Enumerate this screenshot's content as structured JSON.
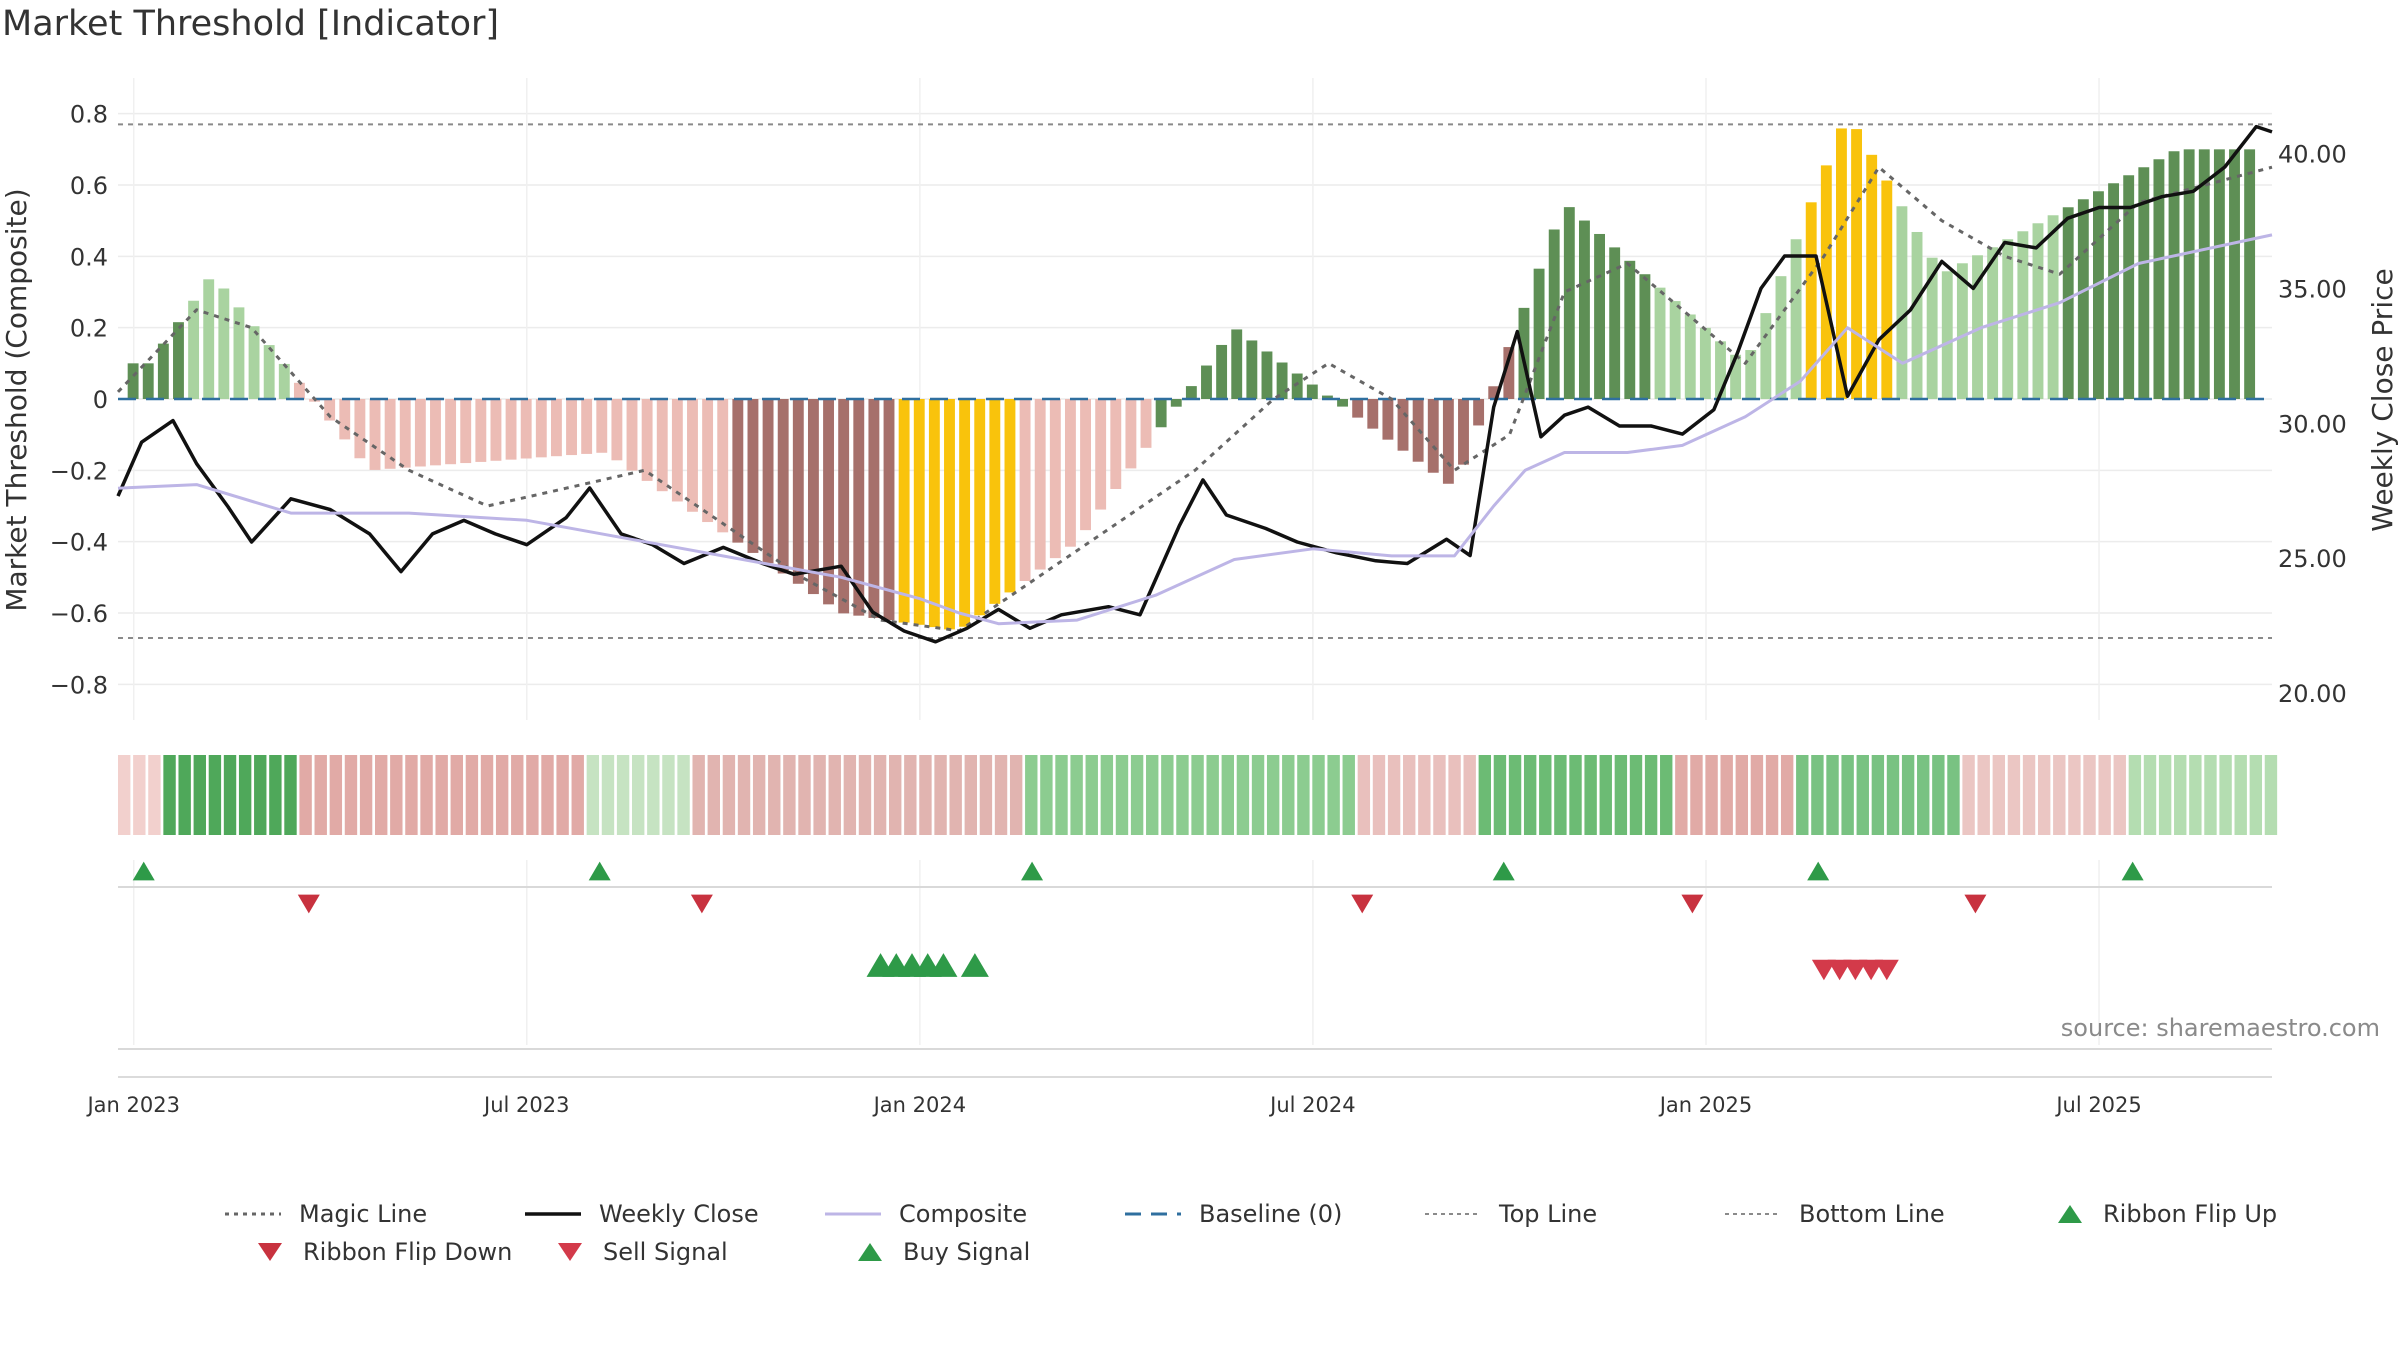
{
  "title": "Market Threshold [Indicator]",
  "source": "source: sharemaestro.com",
  "colors": {
    "strong_up": "#5e8f55",
    "weak_up": "#a9d3a0",
    "strong_down": "#a6706b",
    "weak_down": "#ecbcb5",
    "extreme": "#f9c30c",
    "weekly_close": "#111111",
    "composite": "#bdb5e6",
    "magic_line": "#666666",
    "baseline": "#2f6f9f",
    "threshold_line": "#8a8a8a",
    "buy": "#2e9a48",
    "sell": "#d33a4a"
  },
  "legend": [
    {
      "label": "Magic Line",
      "icon": "dotted-line"
    },
    {
      "label": "Weekly Close",
      "icon": "solid-line"
    },
    {
      "label": "Composite",
      "icon": "solid-line"
    },
    {
      "label": "Baseline (0)",
      "icon": "dashed-line"
    },
    {
      "label": "Top Line",
      "icon": "dotted-line"
    },
    {
      "label": "Bottom Line",
      "icon": "dotted-line"
    },
    {
      "label": "Ribbon Flip Up",
      "icon": "triangle-up"
    },
    {
      "label": "Ribbon Flip Down",
      "icon": "triangle-down"
    },
    {
      "label": "Sell Signal",
      "icon": "triangle-down"
    },
    {
      "label": "Buy Signal",
      "icon": "triangle-up"
    }
  ],
  "chart_data": {
    "type": "bar",
    "ylabel": "Market Threshold (Composite)",
    "y2label": "Weekly Close Price",
    "ylim": [
      -0.9,
      0.9
    ],
    "y2lim": [
      19.0,
      42.8
    ],
    "yticks": [
      "0.8",
      "0.6",
      "0.4",
      "0.2",
      "0",
      "−0.2",
      "−0.4",
      "−0.6",
      "−0.8"
    ],
    "yticks_values": [
      0.8,
      0.6,
      0.4,
      0.2,
      0,
      -0.2,
      -0.4,
      -0.6,
      -0.8
    ],
    "y2ticks": [
      "40.00",
      "35.00",
      "30.00",
      "25.00",
      "20.00"
    ],
    "y2ticks_values": [
      40,
      35,
      30,
      25,
      20
    ],
    "xticks": [
      "Jan 2023",
      "Jul 2023",
      "Jan 2024",
      "Jul 2024",
      "Jan 2025",
      "Jul 2025"
    ],
    "xticks_values": [
      2023.0,
      2023.5,
      2024.0,
      2024.5,
      2025.0,
      2025.5
    ],
    "x_start": 2022.98,
    "x_end": 2025.72,
    "top_line": 0.77,
    "bottom_line": -0.67,
    "baseline": 0,
    "grid": true,
    "legend_position": "bottom",
    "series": [
      {
        "name": "Magic Line",
        "type": "line",
        "axis": "left",
        "points": [
          [
            2022.98,
            0.02
          ],
          [
            2023.08,
            0.25
          ],
          [
            2023.15,
            0.2
          ],
          [
            2023.25,
            -0.05
          ],
          [
            2023.35,
            -0.2
          ],
          [
            2023.45,
            -0.3
          ],
          [
            2023.55,
            -0.25
          ],
          [
            2023.65,
            -0.2
          ],
          [
            2023.75,
            -0.35
          ],
          [
            2023.85,
            -0.5
          ],
          [
            2023.95,
            -0.62
          ],
          [
            2024.05,
            -0.65
          ],
          [
            2024.15,
            -0.5
          ],
          [
            2024.25,
            -0.35
          ],
          [
            2024.35,
            -0.2
          ],
          [
            2024.45,
            0.0
          ],
          [
            2024.52,
            0.1
          ],
          [
            2024.6,
            0.0
          ],
          [
            2024.68,
            -0.2
          ],
          [
            2024.75,
            -0.1
          ],
          [
            2024.82,
            0.3
          ],
          [
            2024.9,
            0.38
          ],
          [
            2024.97,
            0.25
          ],
          [
            2025.05,
            0.1
          ],
          [
            2025.15,
            0.4
          ],
          [
            2025.22,
            0.65
          ],
          [
            2025.3,
            0.5
          ],
          [
            2025.38,
            0.4
          ],
          [
            2025.45,
            0.35
          ],
          [
            2025.55,
            0.55
          ],
          [
            2025.72,
            0.65
          ]
        ]
      },
      {
        "name": "Weekly Close",
        "type": "line",
        "axis": "right",
        "points": [
          [
            2022.98,
            27.3
          ],
          [
            2023.01,
            29.3
          ],
          [
            2023.05,
            30.1
          ],
          [
            2023.08,
            28.5
          ],
          [
            2023.12,
            26.9
          ],
          [
            2023.15,
            25.6
          ],
          [
            2023.2,
            27.2
          ],
          [
            2023.25,
            26.8
          ],
          [
            2023.3,
            25.9
          ],
          [
            2023.34,
            24.5
          ],
          [
            2023.38,
            25.9
          ],
          [
            2023.42,
            26.4
          ],
          [
            2023.46,
            25.9
          ],
          [
            2023.5,
            25.5
          ],
          [
            2023.55,
            26.5
          ],
          [
            2023.58,
            27.6
          ],
          [
            2023.62,
            25.9
          ],
          [
            2023.66,
            25.5
          ],
          [
            2023.7,
            24.8
          ],
          [
            2023.75,
            25.4
          ],
          [
            2023.8,
            24.8
          ],
          [
            2023.84,
            24.4
          ],
          [
            2023.9,
            24.7
          ],
          [
            2023.94,
            23.0
          ],
          [
            2023.98,
            22.3
          ],
          [
            2024.02,
            21.9
          ],
          [
            2024.06,
            22.4
          ],
          [
            2024.1,
            23.1
          ],
          [
            2024.14,
            22.4
          ],
          [
            2024.18,
            22.9
          ],
          [
            2024.24,
            23.2
          ],
          [
            2024.28,
            22.9
          ],
          [
            2024.33,
            26.2
          ],
          [
            2024.36,
            27.9
          ],
          [
            2024.39,
            26.6
          ],
          [
            2024.44,
            26.1
          ],
          [
            2024.48,
            25.6
          ],
          [
            2024.53,
            25.2
          ],
          [
            2024.58,
            24.9
          ],
          [
            2024.62,
            24.8
          ],
          [
            2024.67,
            25.7
          ],
          [
            2024.7,
            25.1
          ],
          [
            2024.73,
            30.6
          ],
          [
            2024.76,
            33.4
          ],
          [
            2024.79,
            29.5
          ],
          [
            2024.82,
            30.3
          ],
          [
            2024.85,
            30.6
          ],
          [
            2024.89,
            29.9
          ],
          [
            2024.93,
            29.9
          ],
          [
            2024.97,
            29.6
          ],
          [
            2025.01,
            30.5
          ],
          [
            2025.04,
            32.6
          ],
          [
            2025.07,
            35.0
          ],
          [
            2025.1,
            36.2
          ],
          [
            2025.14,
            36.2
          ],
          [
            2025.18,
            31.0
          ],
          [
            2025.22,
            33.1
          ],
          [
            2025.26,
            34.2
          ],
          [
            2025.3,
            36.0
          ],
          [
            2025.34,
            35.0
          ],
          [
            2025.38,
            36.7
          ],
          [
            2025.42,
            36.5
          ],
          [
            2025.46,
            37.6
          ],
          [
            2025.5,
            38.0
          ],
          [
            2025.54,
            38.0
          ],
          [
            2025.58,
            38.4
          ],
          [
            2025.62,
            38.6
          ],
          [
            2025.66,
            39.5
          ],
          [
            2025.7,
            41.0
          ],
          [
            2025.72,
            40.8
          ]
        ]
      },
      {
        "name": "Composite",
        "type": "line",
        "axis": "left",
        "points": [
          [
            2022.98,
            -0.25
          ],
          [
            2023.08,
            -0.24
          ],
          [
            2023.2,
            -0.32
          ],
          [
            2023.35,
            -0.32
          ],
          [
            2023.5,
            -0.34
          ],
          [
            2023.65,
            -0.4
          ],
          [
            2023.8,
            -0.46
          ],
          [
            2023.9,
            -0.5
          ],
          [
            2024.0,
            -0.56
          ],
          [
            2024.05,
            -0.6
          ],
          [
            2024.1,
            -0.63
          ],
          [
            2024.2,
            -0.62
          ],
          [
            2024.3,
            -0.55
          ],
          [
            2024.4,
            -0.45
          ],
          [
            2024.5,
            -0.42
          ],
          [
            2024.6,
            -0.44
          ],
          [
            2024.68,
            -0.44
          ],
          [
            2024.73,
            -0.3
          ],
          [
            2024.77,
            -0.2
          ],
          [
            2024.82,
            -0.15
          ],
          [
            2024.9,
            -0.15
          ],
          [
            2024.97,
            -0.13
          ],
          [
            2025.05,
            -0.05
          ],
          [
            2025.12,
            0.05
          ],
          [
            2025.18,
            0.2
          ],
          [
            2025.25,
            0.1
          ],
          [
            2025.35,
            0.2
          ],
          [
            2025.45,
            0.27
          ],
          [
            2025.55,
            0.38
          ],
          [
            2025.72,
            0.46
          ]
        ]
      }
    ],
    "bars": [
      {
        "x": 2023.02,
        "value": 0.1,
        "c": "strong_up"
      },
      {
        "x": 2023.1,
        "value": 0.35,
        "c": "weak_up"
      },
      {
        "x": 2023.3,
        "value": -0.2,
        "c": "weak_down"
      },
      {
        "x": 2023.6,
        "value": -0.15,
        "c": "weak_down"
      },
      {
        "x": 2023.9,
        "value": -0.6,
        "c": "strong_down"
      },
      {
        "x": 2024.05,
        "value": -0.65,
        "c": "extreme"
      },
      {
        "x": 2024.2,
        "value": -0.4,
        "c": "weak_down"
      },
      {
        "x": 2024.4,
        "value": 0.2,
        "c": "strong_up"
      },
      {
        "x": 2024.68,
        "value": -0.25,
        "c": "strong_down"
      },
      {
        "x": 2024.82,
        "value": 0.55,
        "c": "strong_up"
      },
      {
        "x": 2025.05,
        "value": 0.1,
        "c": "weak_up"
      },
      {
        "x": 2025.18,
        "value": 0.8,
        "c": "extreme"
      },
      {
        "x": 2025.3,
        "value": 0.35,
        "c": "weak_up"
      },
      {
        "x": 2025.6,
        "value": 0.7,
        "c": "strong_up"
      }
    ],
    "ribbon_segments": [
      {
        "from": 2022.98,
        "to": 2023.02,
        "c": "#f2d0cd"
      },
      {
        "from": 2023.02,
        "to": 2023.2,
        "c": "#4fa85a"
      },
      {
        "from": 2023.2,
        "to": 2023.56,
        "c": "#e1aaa6"
      },
      {
        "from": 2023.56,
        "to": 2023.7,
        "c": "#c6e3c2"
      },
      {
        "from": 2023.7,
        "to": 2024.12,
        "c": "#e1b4b0"
      },
      {
        "from": 2024.12,
        "to": 2024.54,
        "c": "#8ccc90"
      },
      {
        "from": 2024.54,
        "to": 2024.71,
        "c": "#e9c0bd"
      },
      {
        "from": 2024.71,
        "to": 2024.96,
        "c": "#6cbb74"
      },
      {
        "from": 2024.96,
        "to": 2025.11,
        "c": "#e1aaa6"
      },
      {
        "from": 2025.11,
        "to": 2025.32,
        "c": "#79c282"
      },
      {
        "from": 2025.32,
        "to": 2025.52,
        "c": "#ebc6c3"
      },
      {
        "from": 2025.52,
        "to": 2025.72,
        "c": "#b4ddb1"
      }
    ],
    "ribbon_flip_up": [
      2023.0,
      2023.58,
      2024.13,
      2024.73,
      2025.13,
      2025.53
    ],
    "ribbon_flip_down": [
      2023.21,
      2023.71,
      2024.55,
      2024.97,
      2025.33
    ],
    "buy_signals": [
      2023.95,
      2023.97,
      2023.99,
      2024.01,
      2024.03,
      2024.07
    ],
    "sell_signals": [
      2025.15,
      2025.17,
      2025.19,
      2025.21,
      2025.23
    ]
  }
}
